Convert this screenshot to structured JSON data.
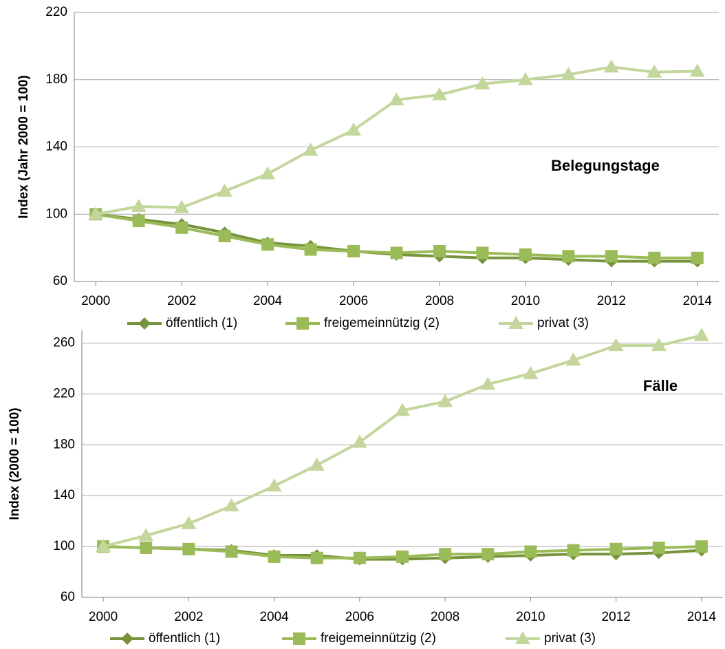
{
  "chart_data": [
    {
      "type": "line",
      "y_label": "Index (Jahr 2000 = 100)",
      "annotation": "Belegungstage",
      "x": [
        2000,
        2001,
        2002,
        2003,
        2004,
        2005,
        2006,
        2007,
        2008,
        2009,
        2010,
        2011,
        2012,
        2013,
        2014
      ],
      "xlim": [
        1999.5,
        2014.5
      ],
      "xticks": [
        2000,
        2002,
        2004,
        2006,
        2008,
        2010,
        2012,
        2014
      ],
      "ylim": [
        60,
        220
      ],
      "yticks": [
        60,
        100,
        140,
        180,
        220
      ],
      "grid": true,
      "legend": "bottom",
      "series": [
        {
          "name": "öffentlich (1)",
          "color": "#77933c",
          "marker": "diamond",
          "values": [
            100,
            97,
            94,
            89,
            83,
            81,
            78,
            76,
            75,
            74,
            74,
            73,
            72,
            72,
            72
          ]
        },
        {
          "name": "freigemeinnützig (2)",
          "color": "#9bbb59",
          "marker": "square",
          "values": [
            100,
            96,
            92,
            87,
            82,
            79,
            78,
            77,
            78,
            77,
            76,
            75,
            75,
            74,
            74
          ]
        },
        {
          "name": "privat (3)",
          "color": "#c3d69b",
          "marker": "triangle",
          "values": [
            100,
            104.6,
            104,
            113.7,
            124,
            138,
            150,
            168,
            171,
            177.5,
            180,
            183,
            187.5,
            184.5,
            185
          ]
        }
      ]
    },
    {
      "type": "line",
      "y_label": "Index (2000 = 100)",
      "annotation": "Fälle",
      "x": [
        2000,
        2001,
        2002,
        2003,
        2004,
        2005,
        2006,
        2007,
        2008,
        2009,
        2010,
        2011,
        2012,
        2013,
        2014
      ],
      "xlim": [
        1999.5,
        2014.5
      ],
      "xticks": [
        2000,
        2002,
        2004,
        2006,
        2008,
        2010,
        2012,
        2014
      ],
      "ylim": [
        60,
        270
      ],
      "yticks": [
        60,
        100,
        140,
        180,
        220,
        260
      ],
      "grid": true,
      "legend": "bottom",
      "series": [
        {
          "name": "öffentlich (1)",
          "color": "#77933c",
          "marker": "diamond",
          "values": [
            100,
            99,
            98,
            97,
            93,
            93,
            90,
            90,
            91,
            92,
            93,
            94,
            94,
            95,
            97
          ]
        },
        {
          "name": "freigemeinnützig (2)",
          "color": "#9bbb59",
          "marker": "square",
          "values": [
            100,
            99,
            98,
            96,
            92,
            91,
            91,
            92,
            94,
            94,
            96,
            97,
            98,
            99,
            100
          ]
        },
        {
          "name": "privat (3)",
          "color": "#c3d69b",
          "marker": "triangle",
          "values": [
            100,
            108.6,
            118,
            132,
            147.6,
            164,
            182,
            207,
            214,
            227.6,
            236,
            246.5,
            258,
            258,
            266
          ]
        }
      ]
    }
  ]
}
